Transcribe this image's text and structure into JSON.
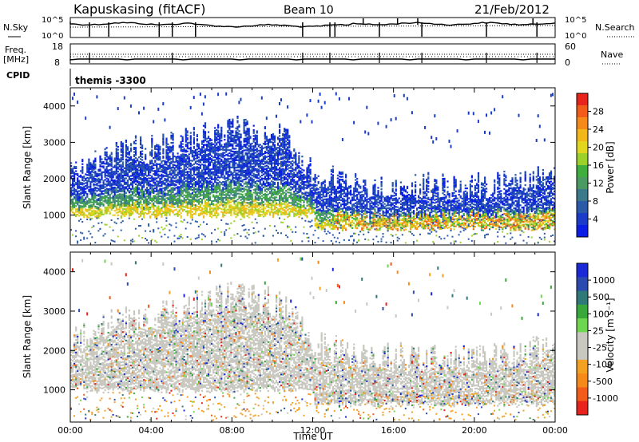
{
  "header": {
    "station": "Kapuskasing (fitACF)",
    "beam": "Beam 10",
    "date": "21/Feb/2012"
  },
  "params": {
    "nsky_label": "N.Sky",
    "nsearch_label": "N.Search",
    "freq_label_1": "Freq.",
    "freq_label_2": "[MHz]",
    "nave_label": "Nave",
    "cpid_label": "CPID",
    "cpid_value": "themis -3300",
    "nsky_ticks": [
      "10^5",
      "10^0"
    ],
    "nsearch_ticks": [
      "10^5",
      "10^0"
    ],
    "freq_ticks": [
      "18",
      "8"
    ],
    "nave_ticks": [
      "60",
      "0"
    ]
  },
  "chart_data": [
    {
      "type": "heatmap",
      "panel": "power",
      "ylabel": "Slant Range [km]",
      "ylim": [
        180,
        4500
      ],
      "yticks": [
        1000,
        2000,
        3000,
        4000
      ],
      "xlim": [
        0,
        24
      ],
      "colorbar": {
        "label": "Power [dB]",
        "ticks": [
          "28",
          "24",
          "20",
          "16",
          "12",
          "8",
          "4"
        ],
        "colors": [
          "#e8231c",
          "#f25b1a",
          "#f58a1b",
          "#f2b81a",
          "#e2d61e",
          "#9bd12a",
          "#3fae3c",
          "#4a9a62",
          "#3a7a8a",
          "#2a5aa8",
          "#1a3cc8",
          "#0a1ee6"
        ]
      },
      "scatter_band": [
        {
          "x": 0.0,
          "y": 1300
        },
        {
          "x": 1.0,
          "y": 1500
        },
        {
          "x": 2.0,
          "y": 1750
        },
        {
          "x": 3.0,
          "y": 1900
        },
        {
          "x": 4.0,
          "y": 1950
        },
        {
          "x": 5.0,
          "y": 2050
        },
        {
          "x": 6.0,
          "y": 2300
        },
        {
          "x": 7.0,
          "y": 2450
        },
        {
          "x": 8.0,
          "y": 2500
        },
        {
          "x": 9.0,
          "y": 2450
        },
        {
          "x": 10.0,
          "y": 2350
        },
        {
          "x": 11.0,
          "y": 2100
        },
        {
          "x": 11.5,
          "y": 1700
        },
        {
          "x": 12.0,
          "y": 1300
        },
        {
          "x": 13.0,
          "y": 1150
        },
        {
          "x": 14.0,
          "y": 1050
        },
        {
          "x": 15.0,
          "y": 1000
        },
        {
          "x": 16.0,
          "y": 950
        },
        {
          "x": 17.0,
          "y": 900
        },
        {
          "x": 18.0,
          "y": 900
        },
        {
          "x": 19.0,
          "y": 900
        },
        {
          "x": 20.0,
          "y": 950
        },
        {
          "x": 21.0,
          "y": 1000
        },
        {
          "x": 22.0,
          "y": 1050
        },
        {
          "x": 23.0,
          "y": 1150
        },
        {
          "x": 24.0,
          "y": 1250
        }
      ]
    },
    {
      "type": "heatmap",
      "panel": "velocity",
      "ylabel": "Slant Range [km]",
      "ylim": [
        180,
        4500
      ],
      "yticks": [
        1000,
        2000,
        3000,
        4000
      ],
      "xlim": [
        0,
        24
      ],
      "xlabel": "Time UT",
      "xticks": [
        "00:00",
        "04:00",
        "08:00",
        "12:00",
        "16:00",
        "20:00",
        "00:00"
      ],
      "colorbar": {
        "label": "Velocity [m s⁻¹]",
        "ticks": [
          "1000",
          "500",
          "100",
          "25",
          "-25",
          "-100",
          "-500",
          "-1000"
        ],
        "colors": [
          "#1a28d8",
          "#2a4ab0",
          "#2f7a78",
          "#39a83a",
          "#6fd64f",
          "#c8c8c0",
          "#c8c8c0",
          "#f4a020",
          "#f58a1b",
          "#f25b1a",
          "#e8231c"
        ]
      }
    }
  ]
}
